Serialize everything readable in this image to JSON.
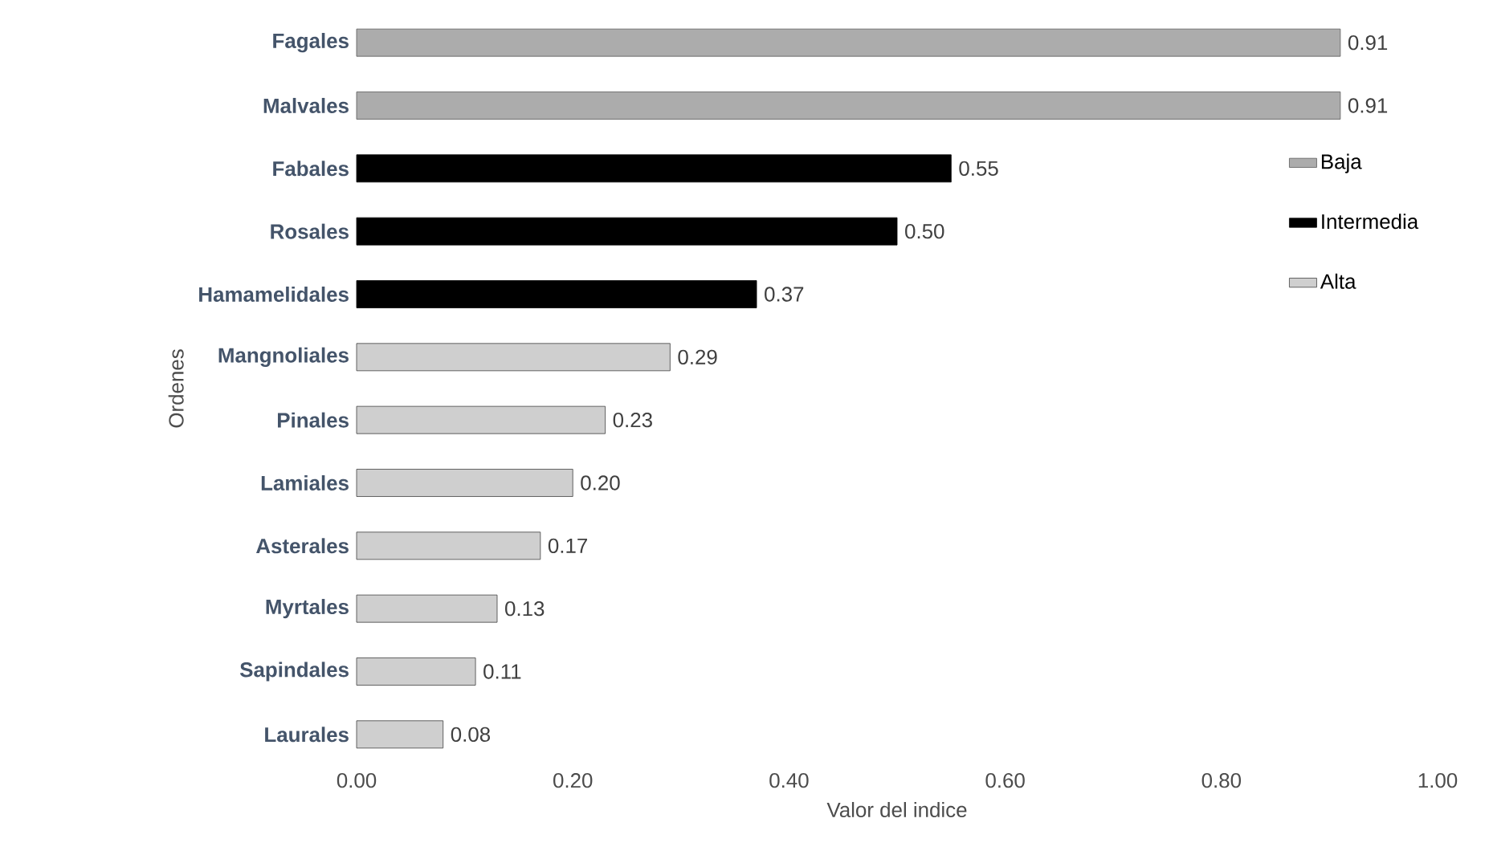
{
  "chart_data": {
    "type": "bar",
    "orientation": "horizontal",
    "categories": [
      "Fagales",
      "Malvales",
      "Fabales",
      "Rosales",
      "Hamamelidales",
      "Mangnoliales",
      "Pinales",
      "Lamiales",
      "Asterales",
      "Myrtales",
      "Sapindales",
      "Laurales"
    ],
    "series": [
      {
        "name": "Baja",
        "color": "#595959",
        "values": [
          0.91,
          0.91,
          null,
          null,
          null,
          null,
          null,
          null,
          null,
          null,
          null,
          null
        ],
        "value_labels": [
          "0.91",
          "0.91",
          null,
          null,
          null,
          null,
          null,
          null,
          null,
          null,
          null,
          null
        ]
      },
      {
        "name": "Intermedia",
        "color": "#000000",
        "values": [
          null,
          null,
          0.55,
          0.5,
          0.37,
          null,
          null,
          null,
          null,
          null,
          null,
          null
        ],
        "value_labels": [
          null,
          null,
          "0.55",
          "0.50",
          "0.37",
          null,
          null,
          null,
          null,
          null,
          null,
          null
        ]
      },
      {
        "name": "Alta",
        "color": "#404040",
        "values": [
          null,
          null,
          null,
          null,
          null,
          0.29,
          0.23,
          0.2,
          0.17,
          0.13,
          0.11,
          0.08
        ],
        "value_labels": [
          null,
          null,
          null,
          null,
          null,
          "0.29",
          "0.23",
          "0.20",
          "0.17",
          "0.13",
          "0.11",
          "0.08"
        ]
      }
    ],
    "xlabel": "Valor del indice",
    "ylabel": "Ordenes",
    "xlim": [
      0,
      1
    ],
    "xticks": [
      {
        "value": 0,
        "label": "0.00"
      },
      {
        "value": 0.2,
        "label": "0.20"
      },
      {
        "value": 0.4,
        "label": "0.40"
      },
      {
        "value": 0.6,
        "label": "0.60"
      },
      {
        "value": 0.8,
        "label": "0.80"
      },
      {
        "value": 1,
        "label": "1.00"
      }
    ],
    "legend": "right"
  }
}
